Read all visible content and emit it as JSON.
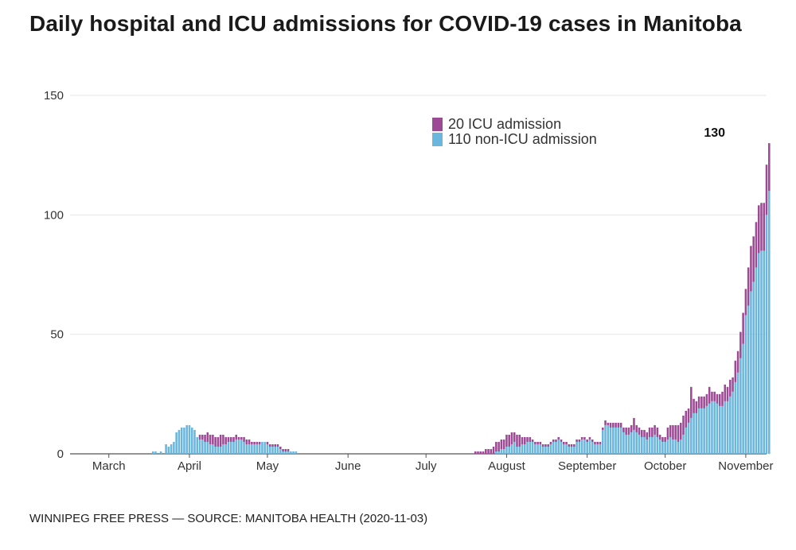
{
  "title": "Daily hospital and ICU admissions for COVID-19 cases in Manitoba",
  "source": "WINNIPEG FREE PRESS — SOURCE: MANITOBA HEALTH (2020-11-03)",
  "colors": {
    "icu": "#9c4a94",
    "non_icu": "#6bb6dc",
    "grid": "#e4e4e4",
    "axis": "#555555"
  },
  "legend": [
    {
      "count": "20",
      "label": "ICU admission",
      "color": "#9c4a94"
    },
    {
      "count": "110",
      "label": "non-ICU admission",
      "color": "#6bb6dc"
    }
  ],
  "chart_data": {
    "type": "bar",
    "stacked": true,
    "title": "Daily hospital and ICU admissions for COVID-19 cases in Manitoba",
    "x_start": "2020-03-01",
    "x_end": "2020-11-03",
    "x_tick_labels": [
      {
        "date": "2020-03-15",
        "label": "March"
      },
      {
        "date": "2020-04-15",
        "label": "April"
      },
      {
        "date": "2020-05-15",
        "label": "May"
      },
      {
        "date": "2020-06-15",
        "label": "June"
      },
      {
        "date": "2020-07-15",
        "label": "July"
      },
      {
        "date": "2020-08-15",
        "label": "August"
      },
      {
        "date": "2020-09-15",
        "label": "September"
      },
      {
        "date": "2020-10-15",
        "label": "October"
      },
      {
        "date": "2020-11-15",
        "label": "November"
      }
    ],
    "y_ticks": [
      0,
      50,
      100,
      150
    ],
    "ylim": [
      0,
      150
    ],
    "grid": true,
    "legend_position": "top-right",
    "annotation": {
      "date": "2020-11-03",
      "text": "130"
    },
    "series": [
      {
        "name": "non-ICU admission",
        "color": "#6bb6dc",
        "start_date": "2020-03-01",
        "values": [
          0,
          0,
          0,
          0,
          0,
          0,
          0,
          0,
          0,
          0,
          0,
          0,
          0,
          0,
          0,
          0,
          0,
          0,
          0,
          0,
          0,
          0,
          0,
          0,
          0,
          0,
          0,
          0,
          0,
          0,
          0,
          1,
          1,
          0,
          1,
          0,
          4,
          3,
          4,
          5,
          9,
          10,
          11,
          11,
          12,
          12,
          11,
          10,
          7,
          6,
          6,
          5,
          5,
          4,
          4,
          3,
          3,
          3,
          4,
          4,
          5,
          5,
          5,
          6,
          6,
          6,
          5,
          4,
          4,
          4,
          4,
          4,
          4,
          5,
          5,
          4,
          3,
          3,
          3,
          3,
          2,
          1,
          1,
          1,
          1,
          1,
          1,
          0,
          0,
          0,
          0,
          0,
          0,
          0,
          0,
          0,
          0,
          0,
          0,
          0,
          0,
          0,
          0,
          0,
          0,
          0,
          0,
          0,
          0,
          0,
          0,
          0,
          0,
          0,
          0,
          0,
          0,
          0,
          0,
          0,
          0,
          0,
          0,
          0,
          0,
          0,
          0,
          0,
          0,
          0,
          0,
          0,
          0,
          0,
          0,
          0,
          0,
          0,
          0,
          0,
          0,
          0,
          0,
          0,
          0,
          0,
          0,
          0,
          0,
          0,
          0,
          0,
          0,
          0,
          0,
          0,
          0,
          0,
          0,
          0,
          0,
          0,
          0,
          1,
          1,
          2,
          2,
          3,
          3,
          4,
          5,
          3,
          3,
          4,
          4,
          5,
          5,
          5,
          4,
          4,
          4,
          3,
          3,
          3,
          4,
          5,
          5,
          6,
          5,
          4,
          4,
          3,
          3,
          3,
          5,
          5,
          6,
          6,
          5,
          6,
          5,
          4,
          4,
          4,
          10,
          12,
          12,
          11,
          11,
          11,
          11,
          11,
          9,
          8,
          8,
          9,
          10,
          9,
          8,
          7,
          7,
          6,
          7,
          7,
          8,
          7,
          6,
          5,
          5,
          6,
          7,
          6,
          6,
          5,
          6,
          8,
          11,
          13,
          15,
          17,
          17,
          19,
          19,
          19,
          20,
          21,
          22,
          22,
          21,
          20,
          20,
          22,
          22,
          24,
          26,
          30,
          34,
          40,
          46,
          58,
          62,
          68,
          72,
          78,
          84,
          85,
          85,
          100,
          110
        ]
      },
      {
        "name": "ICU admission",
        "color": "#9c4a94",
        "start_date": "2020-03-01",
        "values": [
          0,
          0,
          0,
          0,
          0,
          0,
          0,
          0,
          0,
          0,
          0,
          0,
          0,
          0,
          0,
          0,
          0,
          0,
          0,
          0,
          0,
          0,
          0,
          0,
          0,
          0,
          0,
          0,
          0,
          0,
          0,
          0,
          0,
          0,
          0,
          0,
          0,
          0,
          0,
          0,
          0,
          0,
          0,
          0,
          0,
          0,
          0,
          0,
          0,
          2,
          2,
          3,
          4,
          4,
          4,
          4,
          4,
          5,
          4,
          3,
          2,
          2,
          2,
          2,
          1,
          1,
          2,
          2,
          2,
          1,
          1,
          1,
          1,
          0,
          0,
          1,
          1,
          1,
          1,
          1,
          1,
          1,
          1,
          1,
          0,
          0,
          0,
          0,
          0,
          0,
          0,
          0,
          0,
          0,
          0,
          0,
          0,
          0,
          0,
          0,
          0,
          0,
          0,
          0,
          0,
          0,
          0,
          0,
          0,
          0,
          0,
          0,
          0,
          0,
          0,
          0,
          0,
          0,
          0,
          0,
          0,
          0,
          0,
          0,
          0,
          0,
          0,
          0,
          0,
          0,
          0,
          0,
          0,
          0,
          0,
          0,
          0,
          0,
          0,
          0,
          0,
          0,
          0,
          0,
          0,
          0,
          0,
          0,
          0,
          0,
          0,
          0,
          0,
          0,
          0,
          1,
          1,
          1,
          1,
          2,
          2,
          2,
          3,
          4,
          4,
          4,
          4,
          5,
          5,
          5,
          4,
          5,
          5,
          3,
          3,
          2,
          2,
          1,
          1,
          1,
          1,
          1,
          1,
          1,
          1,
          1,
          1,
          1,
          1,
          1,
          1,
          1,
          1,
          1,
          1,
          1,
          1,
          1,
          1,
          1,
          1,
          1,
          1,
          1,
          1,
          2,
          1,
          2,
          2,
          2,
          2,
          2,
          2,
          3,
          3,
          3,
          5,
          3,
          3,
          3,
          3,
          3,
          4,
          4,
          4,
          4,
          2,
          2,
          2,
          5,
          5,
          6,
          6,
          7,
          7,
          8,
          7,
          6,
          13,
          6,
          5,
          5,
          5,
          5,
          5,
          7,
          4,
          4,
          4,
          5,
          6,
          7,
          6,
          7,
          6,
          9,
          9,
          11,
          13,
          11,
          16,
          19,
          19,
          19,
          20,
          20,
          20,
          21,
          20
        ]
      }
    ]
  }
}
